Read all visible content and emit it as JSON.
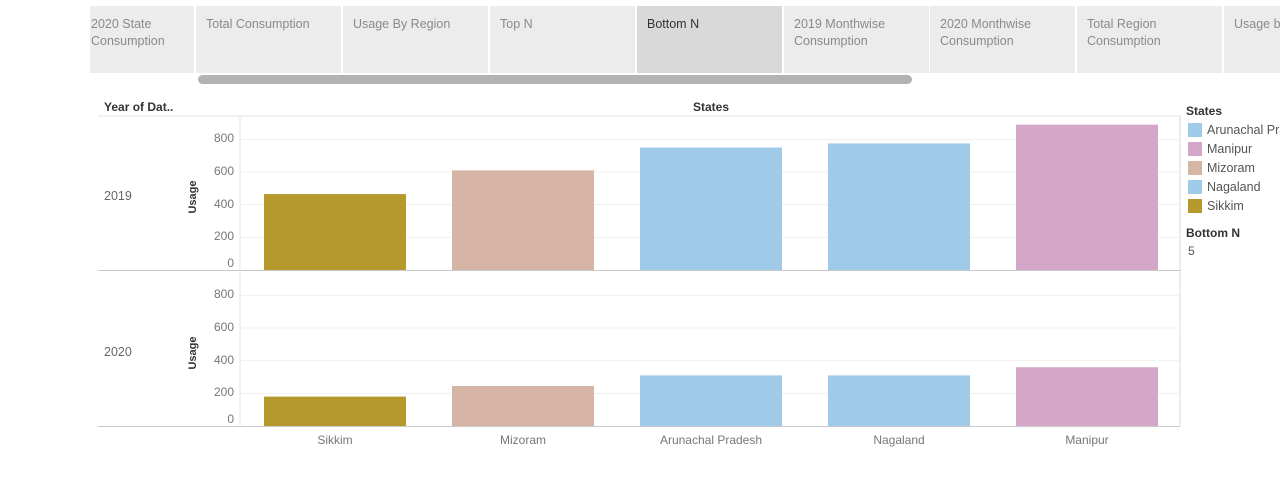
{
  "tabs": [
    {
      "label": "2020 State Consumption",
      "active": false
    },
    {
      "label": "Total Consumption",
      "active": false
    },
    {
      "label": "Usage By Region",
      "active": false
    },
    {
      "label": "Top N",
      "active": false
    },
    {
      "label": "Bottom N",
      "active": true
    },
    {
      "label": "2019 Monthwise Consumption",
      "active": false
    },
    {
      "label": "2020 Monthwise Consumption",
      "active": false
    },
    {
      "label": "Total Region Consumption",
      "active": false
    },
    {
      "label": "Usage b during lo",
      "active": false
    }
  ],
  "parameter": {
    "title": "Bottom N",
    "value": "5"
  },
  "chart_data": {
    "type": "bar",
    "row_header": "Year of Dat..",
    "column_header": "States",
    "ylabel": "Usage",
    "ylim": [
      0,
      900
    ],
    "yticks": [
      0,
      200,
      400,
      600,
      800
    ],
    "categories": [
      "Sikkim",
      "Mizoram",
      "Arunachal Pradesh",
      "Nagaland",
      "Manipur"
    ],
    "panels": [
      {
        "year": "2019",
        "values": [
          465,
          610,
          750,
          775,
          890
        ]
      },
      {
        "year": "2020",
        "values": [
          180,
          245,
          310,
          310,
          360
        ]
      }
    ],
    "legend": {
      "title": "States",
      "items": [
        {
          "name": "Arunachal Pradesh",
          "color": "#a0cbe8"
        },
        {
          "name": "Manipur",
          "color": "#d4a6c8"
        },
        {
          "name": "Mizoram",
          "color": "#d7b5a6"
        },
        {
          "name": "Nagaland",
          "color": "#a0cbe8"
        },
        {
          "name": "Sikkim",
          "color": "#b6992d"
        }
      ]
    }
  }
}
